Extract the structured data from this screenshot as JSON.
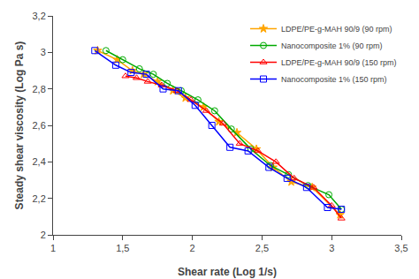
{
  "chart_data": {
    "type": "line",
    "xlabel": "Shear rate (Log 1/s)",
    "ylabel": "Steady shear viscosity (Log Pa s)",
    "series": [
      {
        "name": "LDPE/PE-g-MAH 90/9 (90 rpm)",
        "color": "#FFA500",
        "marker": "star",
        "x": [
          1.32,
          1.46,
          1.57,
          1.65,
          1.75,
          1.86,
          1.95,
          2.08,
          2.19,
          2.32,
          2.46,
          2.58,
          2.71,
          2.86,
          3.06
        ],
        "values": [
          3.01,
          2.96,
          2.9,
          2.88,
          2.84,
          2.79,
          2.75,
          2.7,
          2.62,
          2.56,
          2.47,
          2.37,
          2.29,
          2.26,
          2.11
        ]
      },
      {
        "name": "Nanocomposite 1% (90 rpm)",
        "color": "#00AA00",
        "marker": "circle-open",
        "x": [
          1.38,
          1.5,
          1.62,
          1.72,
          1.82,
          1.92,
          2.04,
          2.16,
          2.28,
          2.42,
          2.56,
          2.69,
          2.83,
          2.98,
          3.07
        ],
        "values": [
          3.01,
          2.96,
          2.91,
          2.88,
          2.83,
          2.79,
          2.74,
          2.68,
          2.58,
          2.47,
          2.38,
          2.33,
          2.27,
          2.22,
          2.14
        ]
      },
      {
        "name": "LDPE/PE-g-MAH 90/9 (150 rpm)",
        "color": "#FF0000",
        "marker": "triangle-open",
        "x": [
          1.52,
          1.6,
          1.68,
          1.78,
          1.89,
          1.99,
          2.1,
          2.22,
          2.34,
          2.47,
          2.6,
          2.73,
          2.87,
          3.0,
          3.07
        ],
        "values": [
          2.87,
          2.86,
          2.84,
          2.82,
          2.79,
          2.74,
          2.68,
          2.61,
          2.5,
          2.46,
          2.4,
          2.31,
          2.26,
          2.16,
          2.09
        ]
      },
      {
        "name": "Nanocomposite 1% (150 rpm)",
        "color": "#0000FF",
        "marker": "square-open",
        "x": [
          1.3,
          1.45,
          1.56,
          1.67,
          1.79,
          1.9,
          2.02,
          2.14,
          2.27,
          2.4,
          2.55,
          2.68,
          2.82,
          2.97,
          3.07
        ],
        "values": [
          3.01,
          2.93,
          2.89,
          2.88,
          2.8,
          2.79,
          2.71,
          2.6,
          2.48,
          2.46,
          2.37,
          2.31,
          2.26,
          2.15,
          2.14
        ]
      }
    ],
    "xlim": [
      1,
      3.5
    ],
    "ylim": [
      2,
      3.2
    ],
    "xticks": [
      1,
      {
        "value": 1.5,
        "label": "1,5"
      },
      2,
      {
        "value": 2.5,
        "label": "2,5"
      },
      3,
      {
        "value": 3.5,
        "label": "3,5"
      }
    ],
    "yticks": [
      2,
      {
        "value": 2.2,
        "label": "2,2"
      },
      {
        "value": 2.4,
        "label": "2,4"
      },
      {
        "value": 2.6,
        "label": "2,6"
      },
      {
        "value": 2.8,
        "label": "2,8"
      },
      3,
      {
        "value": 3.2,
        "label": "3,2"
      }
    ],
    "legend": "upper right",
    "grid": false
  }
}
